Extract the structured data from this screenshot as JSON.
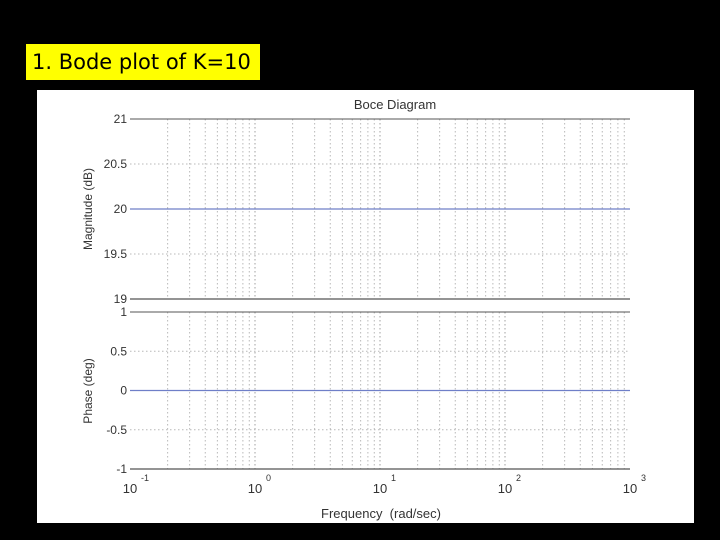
{
  "slide": {
    "title": "1. Bode plot of K=10"
  },
  "chart_data": {
    "type": "line",
    "title": "Boce Diagram",
    "xlabel": "Frequency  (rad/sec)",
    "x_scale": "log",
    "xlim": [
      0.1,
      1000
    ],
    "x_tick_labels": [
      {
        "base": "10",
        "exp": "-1"
      },
      {
        "base": "10",
        "exp": "0"
      },
      {
        "base": "10",
        "exp": "1"
      },
      {
        "base": "10",
        "exp": "2"
      },
      {
        "base": "10",
        "exp": "3"
      }
    ],
    "grid": true,
    "panels": [
      {
        "name": "magnitude",
        "ylabel": "Magnitude (dB)",
        "ylim": [
          19,
          21
        ],
        "yticks": [
          "21",
          "20.5",
          "20",
          "19.5",
          "19"
        ],
        "series": [
          {
            "x": [
              0.1,
              1000
            ],
            "y": [
              20,
              20
            ],
            "color": "#6f7fc8"
          }
        ]
      },
      {
        "name": "phase",
        "ylabel": "Phase (deg)",
        "ylim": [
          -1,
          1
        ],
        "yticks": [
          "1",
          "0.5",
          "0",
          "-0.5",
          "-1"
        ],
        "series": [
          {
            "x": [
              0.1,
              1000
            ],
            "y": [
              0,
              0
            ],
            "color": "#6f7fc8"
          }
        ]
      }
    ]
  }
}
